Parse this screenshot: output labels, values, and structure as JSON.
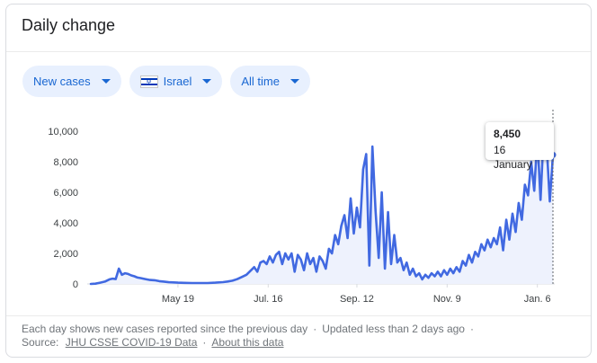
{
  "card": {
    "title": "Daily change"
  },
  "filters": {
    "metric": "New cases",
    "region": "Israel",
    "period": "All time"
  },
  "tooltip": {
    "value": "8,450",
    "date": "16 January"
  },
  "footer": {
    "line1": "Each day shows new cases reported since the previous day",
    "updated": "Updated less than 2 days ago",
    "source_label": "Source:",
    "source_link": "JHU CSSE COVID-19 Data",
    "about_link": "About this data"
  },
  "colors": {
    "line": "#4169e1",
    "area": "#eef2fd",
    "chip_bg": "#e8f0fe",
    "chip_text": "#1967d2"
  },
  "icons": {
    "flag": "israel-flag-icon",
    "caret": "caret-down-icon"
  },
  "chart_data": {
    "type": "line",
    "x_tick_labels": [
      "May 19",
      "Jul. 16",
      "Sep. 12",
      "Nov. 9",
      "Jan. 6"
    ],
    "x_tick_days": [
      56,
      114,
      171,
      229,
      287
    ],
    "y_tick_labels": [
      "0",
      "2,000",
      "4,000",
      "6,000",
      "8,000",
      "10,000"
    ],
    "ylim": [
      0,
      10000
    ],
    "x_range_days": [
      0,
      297
    ],
    "x_origin": "2020-03-24",
    "highlight": {
      "day": 297,
      "value": 8450,
      "label": "16 January"
    },
    "series": [
      {
        "values": [
          [
            0,
            0
          ],
          [
            3,
            20
          ],
          [
            6,
            80
          ],
          [
            9,
            150
          ],
          [
            12,
            300
          ],
          [
            14,
            350
          ],
          [
            16,
            320
          ],
          [
            18,
            1000
          ],
          [
            20,
            600
          ],
          [
            22,
            700
          ],
          [
            24,
            650
          ],
          [
            26,
            560
          ],
          [
            28,
            500
          ],
          [
            30,
            420
          ],
          [
            32,
            380
          ],
          [
            35,
            320
          ],
          [
            38,
            260
          ],
          [
            41,
            240
          ],
          [
            44,
            180
          ],
          [
            47,
            150
          ],
          [
            50,
            110
          ],
          [
            53,
            100
          ],
          [
            56,
            80
          ],
          [
            60,
            70
          ],
          [
            65,
            60
          ],
          [
            70,
            60
          ],
          [
            75,
            60
          ],
          [
            80,
            80
          ],
          [
            85,
            120
          ],
          [
            88,
            160
          ],
          [
            91,
            210
          ],
          [
            94,
            310
          ],
          [
            97,
            450
          ],
          [
            100,
            600
          ],
          [
            103,
            900
          ],
          [
            105,
            1100
          ],
          [
            107,
            800
          ],
          [
            109,
            1400
          ],
          [
            111,
            1500
          ],
          [
            113,
            1300
          ],
          [
            115,
            1800
          ],
          [
            117,
            1400
          ],
          [
            119,
            1900
          ],
          [
            121,
            2100
          ],
          [
            123,
            1300
          ],
          [
            125,
            2000
          ],
          [
            127,
            1600
          ],
          [
            129,
            2000
          ],
          [
            131,
            800
          ],
          [
            133,
            1900
          ],
          [
            135,
            1600
          ],
          [
            137,
            900
          ],
          [
            139,
            2000
          ],
          [
            141,
            1300
          ],
          [
            143,
            1700
          ],
          [
            145,
            800
          ],
          [
            147,
            1800
          ],
          [
            149,
            1500
          ],
          [
            151,
            1000
          ],
          [
            153,
            2300
          ],
          [
            155,
            2000
          ],
          [
            157,
            3200
          ],
          [
            159,
            2600
          ],
          [
            161,
            3800
          ],
          [
            163,
            4500
          ],
          [
            165,
            3000
          ],
          [
            167,
            5600
          ],
          [
            169,
            3300
          ],
          [
            171,
            5000
          ],
          [
            173,
            3700
          ],
          [
            175,
            7500
          ],
          [
            177,
            8500
          ],
          [
            179,
            1200
          ],
          [
            181,
            9000
          ],
          [
            183,
            4800
          ],
          [
            185,
            1700
          ],
          [
            187,
            6000
          ],
          [
            189,
            1000
          ],
          [
            191,
            4700
          ],
          [
            193,
            1300
          ],
          [
            195,
            3200
          ],
          [
            197,
            1400
          ],
          [
            199,
            1700
          ],
          [
            201,
            900
          ],
          [
            203,
            1400
          ],
          [
            205,
            600
          ],
          [
            207,
            1000
          ],
          [
            209,
            500
          ],
          [
            211,
            700
          ],
          [
            213,
            300
          ],
          [
            215,
            600
          ],
          [
            217,
            400
          ],
          [
            219,
            700
          ],
          [
            221,
            500
          ],
          [
            223,
            800
          ],
          [
            225,
            500
          ],
          [
            227,
            900
          ],
          [
            229,
            600
          ],
          [
            231,
            1000
          ],
          [
            233,
            700
          ],
          [
            235,
            1100
          ],
          [
            237,
            800
          ],
          [
            239,
            1500
          ],
          [
            241,
            1200
          ],
          [
            243,
            1900
          ],
          [
            245,
            1400
          ],
          [
            247,
            2100
          ],
          [
            249,
            1800
          ],
          [
            251,
            2600
          ],
          [
            253,
            2200
          ],
          [
            255,
            2900
          ],
          [
            257,
            2400
          ],
          [
            259,
            3000
          ],
          [
            261,
            2600
          ],
          [
            263,
            3700
          ],
          [
            265,
            2200
          ],
          [
            267,
            4200
          ],
          [
            269,
            2900
          ],
          [
            271,
            4600
          ],
          [
            273,
            3400
          ],
          [
            275,
            5300
          ],
          [
            277,
            4200
          ],
          [
            279,
            6500
          ],
          [
            281,
            5800
          ],
          [
            283,
            8000
          ],
          [
            285,
            6100
          ],
          [
            287,
            9600
          ],
          [
            289,
            5500
          ],
          [
            291,
            9800
          ],
          [
            293,
            9000
          ],
          [
            295,
            5400
          ],
          [
            297,
            8450
          ]
        ]
      }
    ]
  }
}
